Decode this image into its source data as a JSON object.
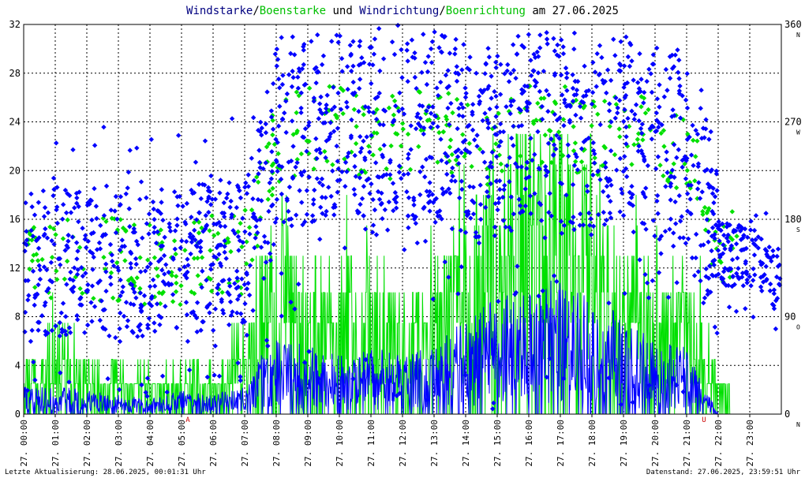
{
  "title": {
    "part1": "Windstarke",
    "sep1": "/",
    "part2": "Boenstarke",
    "part3": " und ",
    "part4": "Windrichtung",
    "sep2": "/",
    "part5": "Boenrichtung",
    "part6": " am 27.06.2025"
  },
  "colors": {
    "blue": "#0000ff",
    "navy": "#000080",
    "green": "#00e000",
    "grid": "#000000",
    "marker": "#cc0000"
  },
  "footer": {
    "left": "Letzte Aktualisierung: 28.06.2025, 00:01:31 Uhr",
    "right": "Datenstand: 27.06.2025, 23:59:51 Uhr"
  },
  "chart_data": {
    "type": "scatter",
    "x_unit": "hour of day",
    "xlim": [
      0,
      24
    ],
    "ylim_left": [
      0,
      32
    ],
    "ylim_right": [
      0,
      360
    ],
    "y_left_ticks": [
      "0",
      "4",
      "8",
      "12",
      "16",
      "20",
      "24",
      "28",
      "32"
    ],
    "y_right_ticks": [
      {
        "value": "0",
        "dir": "N"
      },
      {
        "value": "90",
        "dir": "O"
      },
      {
        "value": "180",
        "dir": "S"
      },
      {
        "value": "270",
        "dir": "W"
      },
      {
        "value": "360",
        "dir": "N"
      }
    ],
    "x_ticks": [
      "27. 00:00",
      "27. 01:00",
      "27. 02:00",
      "27. 03:00",
      "27. 04:00",
      "27. 05:00",
      "27. 06:00",
      "27. 07:00",
      "27. 08:00",
      "27. 09:00",
      "27. 10:00",
      "27. 11:00",
      "27. 12:00",
      "27. 13:00",
      "27. 14:00",
      "27. 15:00",
      "27. 16:00",
      "27. 17:00",
      "27. 18:00",
      "27. 19:00",
      "27. 20:00",
      "27. 21:00",
      "27. 22:00",
      "27. 23:00"
    ],
    "markers": [
      {
        "label": "A",
        "x": 5.2
      },
      {
        "label": "U",
        "x": 21.55
      }
    ],
    "grid": true,
    "series": [
      {
        "name": "Windstarke",
        "kind": "speed",
        "color": "blue",
        "profile": [
          [
            0,
            1.5
          ],
          [
            1,
            1.5
          ],
          [
            2,
            1.2
          ],
          [
            3,
            1.0
          ],
          [
            4,
            0.8
          ],
          [
            5,
            1.2
          ],
          [
            6,
            1.0
          ],
          [
            7,
            1.5
          ],
          [
            7.5,
            3.0
          ],
          [
            8,
            4.0
          ],
          [
            9,
            3.5
          ],
          [
            10,
            3.0
          ],
          [
            11,
            3.5
          ],
          [
            12,
            3.0
          ],
          [
            13,
            3.5
          ],
          [
            14,
            5.0
          ],
          [
            15,
            6.0
          ],
          [
            16,
            6.5
          ],
          [
            17,
            7.0
          ],
          [
            18,
            6.0
          ],
          [
            19,
            5.0
          ],
          [
            20,
            4.0
          ],
          [
            21,
            3.5
          ],
          [
            22,
            0
          ],
          [
            24,
            0
          ]
        ]
      },
      {
        "name": "Boenstarke",
        "kind": "gust",
        "color": "green",
        "profile": [
          [
            0,
            2.5
          ],
          [
            1,
            4.5
          ],
          [
            2,
            3.0
          ],
          [
            3,
            2.5
          ],
          [
            4,
            2.0
          ],
          [
            5,
            2.5
          ],
          [
            6,
            2.5
          ],
          [
            7,
            4.5
          ],
          [
            7.5,
            8.0
          ],
          [
            8,
            10.0
          ],
          [
            9,
            7.0
          ],
          [
            10,
            7.5
          ],
          [
            11,
            8.0
          ],
          [
            12,
            6.0
          ],
          [
            13,
            7.0
          ],
          [
            14,
            10.0
          ],
          [
            15,
            13.0
          ],
          [
            16,
            15.0
          ],
          [
            17,
            14.0
          ],
          [
            18,
            12.0
          ],
          [
            19,
            8.0
          ],
          [
            20,
            7.5
          ],
          [
            21,
            7.5
          ],
          [
            22,
            2.0
          ],
          [
            22.6,
            0
          ],
          [
            24,
            0
          ]
        ]
      },
      {
        "name": "Windrichtung",
        "kind": "direction",
        "color": "blue",
        "profile": [
          [
            0,
            135
          ],
          [
            1,
            140
          ],
          [
            2,
            145
          ],
          [
            3,
            140
          ],
          [
            4,
            140
          ],
          [
            5,
            140
          ],
          [
            6,
            145
          ],
          [
            7,
            150
          ],
          [
            8,
            250
          ],
          [
            9,
            265
          ],
          [
            10,
            265
          ],
          [
            11,
            255
          ],
          [
            12,
            255
          ],
          [
            13,
            265
          ],
          [
            14,
            255
          ],
          [
            15,
            250
          ],
          [
            16,
            265
          ],
          [
            17,
            265
          ],
          [
            18,
            250
          ],
          [
            19,
            260
          ],
          [
            20,
            250
          ],
          [
            21,
            240
          ],
          [
            22,
            150
          ],
          [
            23,
            145
          ],
          [
            24,
            125
          ]
        ]
      },
      {
        "name": "Boenrichtung",
        "kind": "direction-gust",
        "color": "green",
        "profile": [
          [
            0,
            135
          ],
          [
            1,
            140
          ],
          [
            2,
            145
          ],
          [
            3,
            140
          ],
          [
            4,
            140
          ],
          [
            5,
            140
          ],
          [
            6,
            145
          ],
          [
            7,
            150
          ],
          [
            8,
            250
          ],
          [
            9,
            265
          ],
          [
            10,
            265
          ],
          [
            11,
            255
          ],
          [
            12,
            255
          ],
          [
            13,
            265
          ],
          [
            14,
            255
          ],
          [
            15,
            250
          ],
          [
            16,
            265
          ],
          [
            17,
            265
          ],
          [
            18,
            250
          ],
          [
            19,
            260
          ],
          [
            20,
            250
          ],
          [
            21,
            240
          ],
          [
            22,
            160
          ],
          [
            23,
            145
          ],
          [
            24,
            130
          ]
        ]
      }
    ]
  }
}
